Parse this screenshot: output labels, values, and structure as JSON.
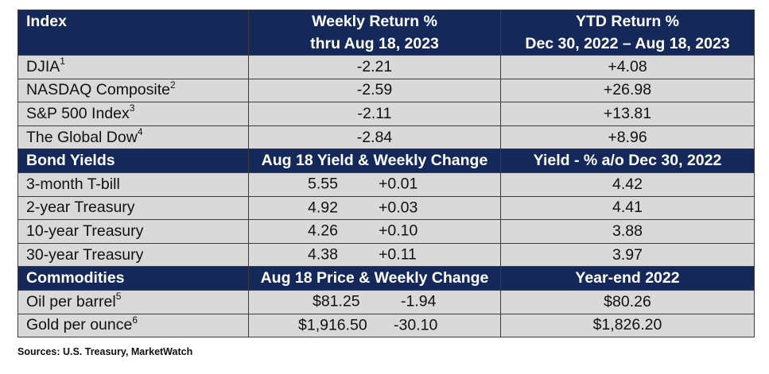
{
  "header_indices": {
    "col1": "Index",
    "col2_line1": "Weekly Return %",
    "col2_line2": "thru Aug 18, 2023",
    "col3_line1": "YTD Return %",
    "col3_line2": "Dec 30, 2022 – Aug 18, 2023"
  },
  "indices": [
    {
      "name": "DJIA",
      "sup": "1",
      "weekly": "-2.21",
      "ytd": "+4.08"
    },
    {
      "name": "NASDAQ Composite",
      "sup": "2",
      "weekly": "-2.59",
      "ytd": "+26.98"
    },
    {
      "name": "S&P 500 Index",
      "sup": "3",
      "weekly": "-2.11",
      "ytd": "+13.81"
    },
    {
      "name": "The Global Dow",
      "sup": "4",
      "weekly": "-2.84",
      "ytd": "+8.96"
    }
  ],
  "header_bonds": {
    "col1": "Bond Yields",
    "col2": "Aug 18 Yield & Weekly Change",
    "col3": "Yield - % a/o Dec 30, 2022"
  },
  "bonds": [
    {
      "name": "3-month T-bill",
      "yield": "5.55",
      "change": "+0.01",
      "prior": "4.42"
    },
    {
      "name": "2-year Treasury",
      "yield": "4.92",
      "change": "+0.03",
      "prior": "4.41"
    },
    {
      "name": "10-year Treasury",
      "yield": "4.26",
      "change": "+0.10",
      "prior": "3.88"
    },
    {
      "name": "30-year Treasury",
      "yield": "4.38",
      "change": "+0.11",
      "prior": "3.97"
    }
  ],
  "header_commodities": {
    "col1": "Commodities",
    "col2": "Aug 18 Price & Weekly Change",
    "col3": "Year-end 2022"
  },
  "commodities": [
    {
      "name": "Oil per barrel",
      "sup": "5",
      "price": "$81.25",
      "change": "-1.94",
      "year_end": "$80.26"
    },
    {
      "name": "Gold per ounce",
      "sup": "6",
      "price": "$1,916.50",
      "change": "-30.10",
      "year_end": "$1,826.20"
    }
  ],
  "sources": "Sources: U.S. Treasury, MarketWatch",
  "colors": {
    "header_bg": "#14295a",
    "row_bg": "#d9d9d9",
    "border": "#3b3b3b"
  }
}
